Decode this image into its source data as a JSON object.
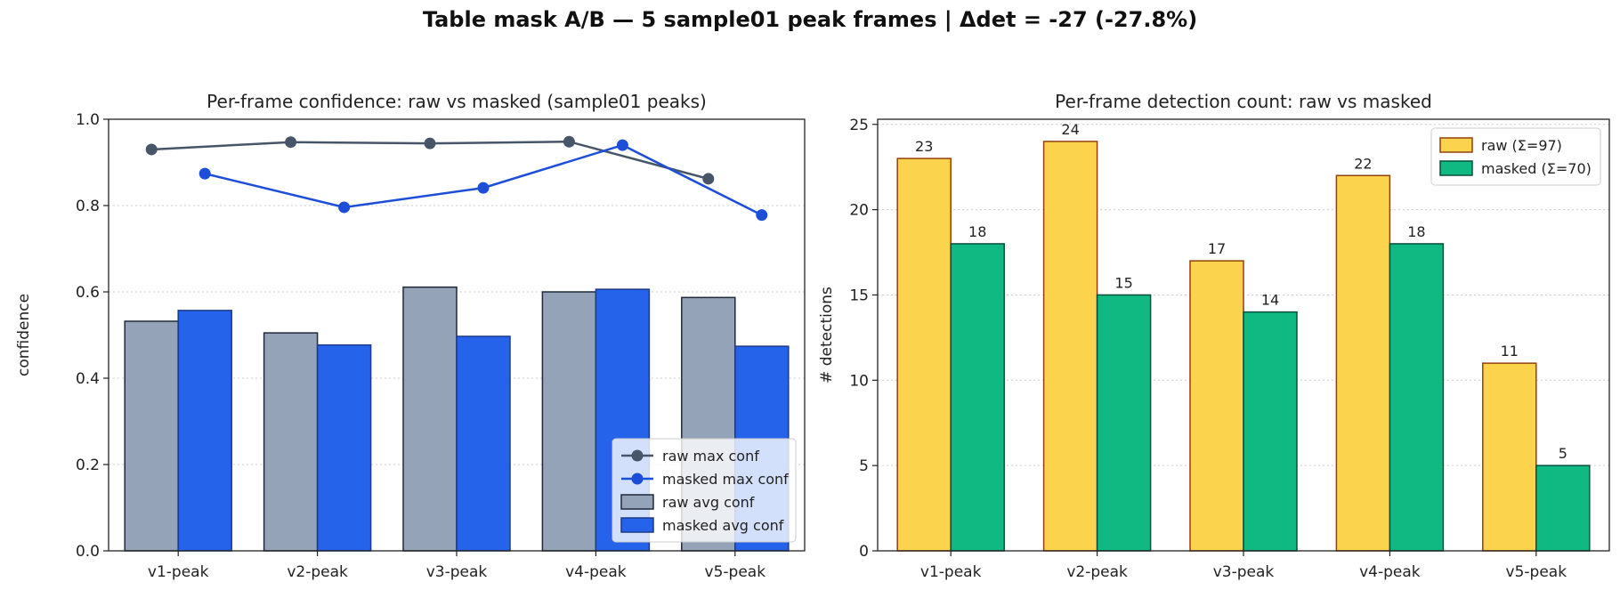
{
  "suptitle": "Table mask A/B — 5 sample01 peak frames | Δdet = -27 (-27.8%)",
  "chart_data": [
    {
      "type": "bar",
      "title": "Per-frame confidence: raw vs masked (sample01 peaks)",
      "xlabel": "",
      "ylabel": "confidence",
      "categories": [
        "v1-peak",
        "v2-peak",
        "v3-peak",
        "v4-peak",
        "v5-peak"
      ],
      "ylim": [
        0,
        1.0
      ],
      "yticks": [
        "0.0",
        "0.2",
        "0.4",
        "0.6",
        "0.8",
        "1.0"
      ],
      "grid": "horizontal dotted",
      "legend_loc": "lower right",
      "series": [
        {
          "name": "raw max conf",
          "kind": "line",
          "color": "#475569",
          "values": [
            0.93,
            0.947,
            0.944,
            0.948,
            0.862
          ]
        },
        {
          "name": "masked max conf",
          "kind": "line",
          "color": "#1d4ed8",
          "values": [
            0.874,
            0.796,
            0.841,
            0.94,
            0.778
          ]
        },
        {
          "name": "raw avg conf",
          "kind": "bar",
          "color": "#94a3b8",
          "values": [
            0.532,
            0.505,
            0.611,
            0.6,
            0.587
          ]
        },
        {
          "name": "masked avg conf",
          "kind": "bar",
          "color": "#2563eb",
          "values": [
            0.557,
            0.477,
            0.497,
            0.606,
            0.474
          ]
        }
      ]
    },
    {
      "type": "bar",
      "title": "Per-frame detection count: raw vs masked",
      "xlabel": "",
      "ylabel": "# detections",
      "categories": [
        "v1-peak",
        "v2-peak",
        "v3-peak",
        "v4-peak",
        "v5-peak"
      ],
      "ylim": [
        0,
        25.3
      ],
      "yticks": [
        "0",
        "5",
        "10",
        "15",
        "20",
        "25"
      ],
      "grid": "horizontal dotted",
      "legend_loc": "upper right",
      "series": [
        {
          "name": "raw (Σ=97)",
          "kind": "bar",
          "color": "#fcd34d",
          "values": [
            23,
            24,
            17,
            22,
            11
          ]
        },
        {
          "name": "masked (Σ=70)",
          "kind": "bar",
          "color": "#10b981",
          "values": [
            18,
            15,
            14,
            18,
            5
          ]
        }
      ]
    }
  ]
}
